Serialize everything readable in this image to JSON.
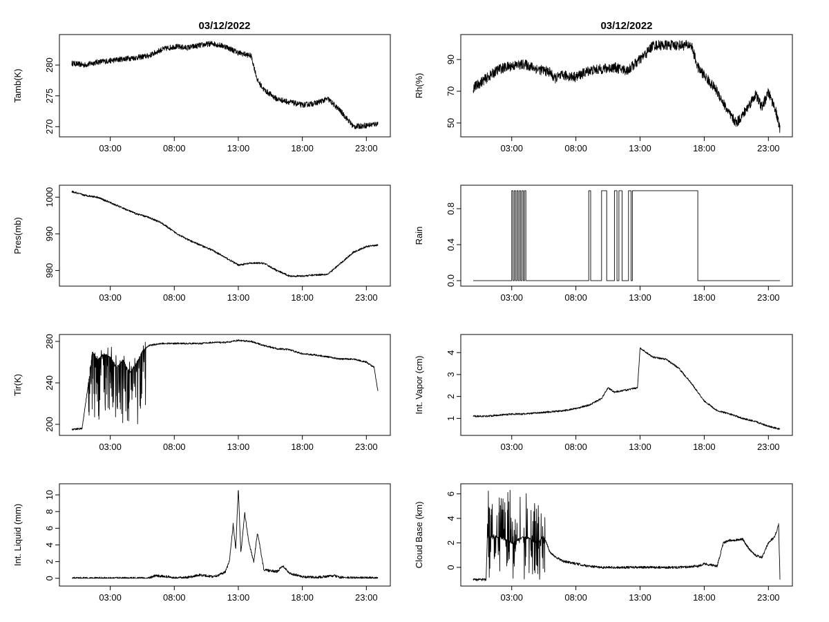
{
  "figure": {
    "left_title": "03/12/2022",
    "right_title": "03/12/2022"
  },
  "x_axis": {
    "tick_labels": [
      "03:00",
      "08:00",
      "13:00",
      "18:00",
      "23:00"
    ],
    "tick_hours": [
      3,
      8,
      13,
      18,
      23
    ],
    "data_range_hours": [
      0.0,
      23.9
    ]
  },
  "chart_data": [
    {
      "type": "line",
      "title": "03/12/2022",
      "ylabel": "Tamb(K)",
      "yticks": [
        270,
        275,
        280
      ],
      "ylim": [
        268.8,
        284.5
      ],
      "anchors": [
        [
          0,
          280.3
        ],
        [
          1,
          280.0
        ],
        [
          2,
          280.5
        ],
        [
          3,
          280.7
        ],
        [
          4,
          281.0
        ],
        [
          5,
          281.2
        ],
        [
          6,
          281.5
        ],
        [
          7,
          282.5
        ],
        [
          8,
          283.0
        ],
        [
          9,
          282.8
        ],
        [
          10,
          283.2
        ],
        [
          11,
          283.5
        ],
        [
          12,
          283.0
        ],
        [
          13,
          282.0
        ],
        [
          14,
          281.5
        ],
        [
          14.5,
          277.5
        ],
        [
          15,
          276.0
        ],
        [
          16,
          274.5
        ],
        [
          17,
          274.0
        ],
        [
          18,
          273.5
        ],
        [
          19,
          273.8
        ],
        [
          20,
          274.5
        ],
        [
          21,
          272.5
        ],
        [
          22,
          270.0
        ],
        [
          23,
          270.2
        ],
        [
          23.9,
          270.5
        ]
      ],
      "noise": 0.45
    },
    {
      "type": "line",
      "title": "03/12/2022",
      "ylabel": "Rh(%)",
      "yticks": [
        50,
        70,
        90
      ],
      "ylim": [
        43,
        104
      ],
      "anchors": [
        [
          0,
          72
        ],
        [
          1,
          78
        ],
        [
          2,
          84
        ],
        [
          3,
          86
        ],
        [
          4,
          87
        ],
        [
          5,
          84
        ],
        [
          6,
          82
        ],
        [
          6.3,
          78
        ],
        [
          7,
          80
        ],
        [
          8,
          79
        ],
        [
          9,
          83
        ],
        [
          10,
          84
        ],
        [
          11,
          85
        ],
        [
          12,
          83
        ],
        [
          13,
          90
        ],
        [
          13.5,
          94
        ],
        [
          14,
          99
        ],
        [
          15,
          99
        ],
        [
          16,
          99
        ],
        [
          17,
          99
        ],
        [
          17.5,
          85
        ],
        [
          18,
          80
        ],
        [
          19,
          70
        ],
        [
          20,
          55
        ],
        [
          20.5,
          50
        ],
        [
          21,
          55
        ],
        [
          22,
          68
        ],
        [
          22.5,
          60
        ],
        [
          23,
          69
        ],
        [
          23.5,
          60
        ],
        [
          23.9,
          46
        ]
      ],
      "noise": 3.2
    },
    {
      "type": "line",
      "title": "",
      "ylabel": "Pres(mb)",
      "yticks": [
        980,
        990,
        1000
      ],
      "ylim": [
        976.5,
        1002.5
      ],
      "anchors": [
        [
          0,
          1001.5
        ],
        [
          1,
          1000.5
        ],
        [
          2,
          1000.0
        ],
        [
          3,
          998.5
        ],
        [
          4,
          997.0
        ],
        [
          5,
          995.5
        ],
        [
          6,
          994.5
        ],
        [
          7,
          993.0
        ],
        [
          8,
          990.5
        ],
        [
          9,
          988.5
        ],
        [
          10,
          987.0
        ],
        [
          11,
          985.5
        ],
        [
          12,
          983.5
        ],
        [
          13,
          981.5
        ],
        [
          14,
          982.0
        ],
        [
          15,
          982.0
        ],
        [
          16,
          980.0
        ],
        [
          17,
          978.5
        ],
        [
          18,
          978.5
        ],
        [
          19,
          978.8
        ],
        [
          20,
          979.0
        ],
        [
          21,
          982.0
        ],
        [
          22,
          985.0
        ],
        [
          23,
          986.5
        ],
        [
          23.9,
          987.0
        ]
      ],
      "noise": 0.25
    },
    {
      "type": "line",
      "title": "",
      "ylabel": "Rain",
      "yticks": [
        0.0,
        0.4,
        0.8
      ],
      "yticklabels": [
        "0.0",
        "0.4",
        "0.8"
      ],
      "ylim": [
        -0.03,
        1.03
      ],
      "segments": [
        [
          0.0,
          3.0,
          0
        ],
        [
          3.0,
          3.1,
          1
        ],
        [
          3.1,
          3.2,
          0
        ],
        [
          3.2,
          3.3,
          1
        ],
        [
          3.3,
          3.4,
          0
        ],
        [
          3.4,
          3.5,
          1
        ],
        [
          3.5,
          3.6,
          0
        ],
        [
          3.6,
          3.7,
          1
        ],
        [
          3.7,
          3.8,
          0
        ],
        [
          3.8,
          3.9,
          1
        ],
        [
          3.9,
          4.0,
          0
        ],
        [
          4.0,
          4.1,
          1
        ],
        [
          4.1,
          9.0,
          0
        ],
        [
          9.0,
          9.15,
          1
        ],
        [
          9.15,
          10.0,
          0
        ],
        [
          10.0,
          10.4,
          1
        ],
        [
          10.4,
          11.0,
          0
        ],
        [
          11.0,
          11.2,
          1
        ],
        [
          11.2,
          11.35,
          0
        ],
        [
          11.35,
          11.6,
          1
        ],
        [
          11.6,
          12.1,
          0
        ],
        [
          12.1,
          12.3,
          1
        ],
        [
          12.3,
          12.4,
          0
        ],
        [
          12.4,
          17.5,
          1
        ],
        [
          17.5,
          23.9,
          0
        ]
      ]
    },
    {
      "type": "line",
      "title": "",
      "ylabel": "Tir(K)",
      "yticks": [
        200,
        240,
        280
      ],
      "ylim": [
        192,
        284
      ],
      "anchors": [
        [
          0,
          195
        ],
        [
          0.8,
          196
        ],
        [
          1.3,
          240
        ],
        [
          1.6,
          270
        ],
        [
          2,
          262
        ],
        [
          2.5,
          268
        ],
        [
          3,
          265
        ],
        [
          3.5,
          255
        ],
        [
          4,
          262
        ],
        [
          4.5,
          250
        ],
        [
          5,
          258
        ],
        [
          5.5,
          270
        ],
        [
          6,
          276
        ],
        [
          7,
          278
        ],
        [
          8,
          278
        ],
        [
          9,
          278
        ],
        [
          10,
          278
        ],
        [
          11,
          279
        ],
        [
          12,
          279
        ],
        [
          13,
          281
        ],
        [
          14,
          280
        ],
        [
          15,
          276
        ],
        [
          16,
          273
        ],
        [
          17,
          272
        ],
        [
          18,
          268
        ],
        [
          19,
          267
        ],
        [
          20,
          265
        ],
        [
          21,
          263
        ],
        [
          22,
          263
        ],
        [
          23,
          260
        ],
        [
          23.6,
          255
        ],
        [
          23.9,
          232
        ]
      ],
      "noise": 0.8,
      "spiky_range": [
        1.3,
        5.8
      ],
      "spike_min": 200
    },
    {
      "type": "line",
      "title": "",
      "ylabel": "Int. Vapor (cm)",
      "yticks": [
        1,
        2,
        3,
        4
      ],
      "ylim": [
        0.35,
        4.7
      ],
      "anchors": [
        [
          0,
          1.1
        ],
        [
          1,
          1.1
        ],
        [
          2,
          1.15
        ],
        [
          3,
          1.2
        ],
        [
          4,
          1.2
        ],
        [
          5,
          1.25
        ],
        [
          6,
          1.3
        ],
        [
          7,
          1.35
        ],
        [
          8,
          1.45
        ],
        [
          9,
          1.6
        ],
        [
          10,
          1.9
        ],
        [
          10.5,
          2.4
        ],
        [
          11,
          2.2
        ],
        [
          12,
          2.3
        ],
        [
          12.8,
          2.4
        ],
        [
          13,
          4.2
        ],
        [
          14,
          3.8
        ],
        [
          15,
          3.7
        ],
        [
          16,
          3.3
        ],
        [
          17,
          2.6
        ],
        [
          18,
          1.8
        ],
        [
          19,
          1.35
        ],
        [
          20,
          1.2
        ],
        [
          21,
          1.0
        ],
        [
          22,
          0.85
        ],
        [
          23,
          0.65
        ],
        [
          23.9,
          0.5
        ]
      ],
      "noise": 0.04
    },
    {
      "type": "line",
      "title": "",
      "ylabel": "Int. Liquid (mm)",
      "yticks": [
        0,
        2,
        4,
        6,
        8,
        10
      ],
      "ylim": [
        -0.6,
        11.0
      ],
      "anchors": [
        [
          0,
          0
        ],
        [
          6,
          0
        ],
        [
          6.5,
          0.3
        ],
        [
          7.5,
          0.2
        ],
        [
          8,
          0
        ],
        [
          9,
          0.1
        ],
        [
          10,
          0.4
        ],
        [
          11,
          0.2
        ],
        [
          11.5,
          0.4
        ],
        [
          12,
          0.8
        ],
        [
          12.3,
          2.0
        ],
        [
          12.6,
          6.5
        ],
        [
          12.8,
          3.5
        ],
        [
          13.0,
          10.8
        ],
        [
          13.2,
          3.0
        ],
        [
          13.5,
          7.8
        ],
        [
          13.8,
          4.5
        ],
        [
          14.2,
          2.0
        ],
        [
          14.5,
          5.5
        ],
        [
          15,
          1.0
        ],
        [
          16,
          0.8
        ],
        [
          16.5,
          1.5
        ],
        [
          17,
          0.6
        ],
        [
          18,
          0.2
        ],
        [
          19,
          0.1
        ],
        [
          20.5,
          0.3
        ],
        [
          21,
          0.1
        ],
        [
          22,
          0.05
        ],
        [
          23.9,
          0.05
        ]
      ],
      "noise": 0.15
    },
    {
      "type": "line",
      "title": "",
      "ylabel": "Cloud Base (km)",
      "yticks": [
        0,
        2,
        4,
        6
      ],
      "ylim": [
        -1.3,
        6.6
      ],
      "anchors": [
        [
          0,
          -1.0
        ],
        [
          1.0,
          -1.0
        ],
        [
          1.1,
          2.5
        ],
        [
          2,
          2.5
        ],
        [
          3,
          2.0
        ],
        [
          4,
          2.5
        ],
        [
          5,
          2.0
        ],
        [
          5.5,
          2.5
        ],
        [
          6,
          1.2
        ],
        [
          6.5,
          0.8
        ],
        [
          7,
          0.5
        ],
        [
          8,
          0.3
        ],
        [
          9,
          0.1
        ],
        [
          10,
          0.0
        ],
        [
          12,
          0.0
        ],
        [
          14,
          0.0
        ],
        [
          16,
          0.0
        ],
        [
          17.5,
          0.1
        ],
        [
          18,
          0.3
        ],
        [
          19,
          0.1
        ],
        [
          19.5,
          2.0
        ],
        [
          20,
          2.2
        ],
        [
          21,
          2.3
        ],
        [
          21.5,
          1.5
        ],
        [
          22,
          1.0
        ],
        [
          22.5,
          0.8
        ],
        [
          23,
          2.0
        ],
        [
          23.5,
          2.5
        ],
        [
          23.8,
          3.5
        ],
        [
          23.9,
          -1.0
        ]
      ],
      "noise": 0.1,
      "spiky_range": [
        1.1,
        5.6
      ],
      "spike_min": -1.0,
      "spike_max": 6.3
    }
  ]
}
